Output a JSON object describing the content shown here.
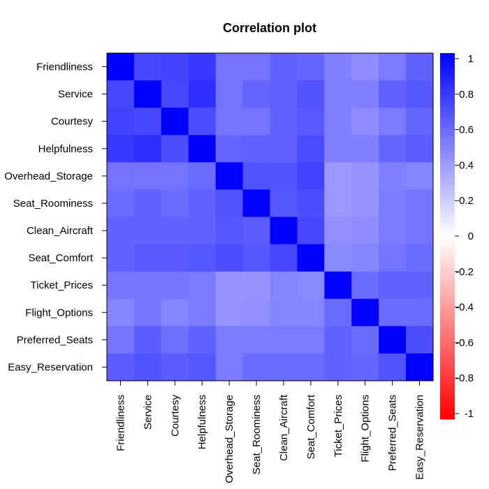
{
  "chart_data": {
    "type": "heatmap",
    "title": "Correlation plot",
    "variables": [
      "Friendliness",
      "Service",
      "Courtesy",
      "Helpfulness",
      "Overhead_Storage",
      "Seat_Roominess",
      "Clean_Aircraft",
      "Seat_Comfort",
      "Ticket_Prices",
      "Flight_Options",
      "Preferred_Seats",
      "Easy_Reservation"
    ],
    "matrix": [
      [
        1.0,
        0.72,
        0.74,
        0.78,
        0.55,
        0.55,
        0.62,
        0.6,
        0.5,
        0.45,
        0.52,
        0.62
      ],
      [
        0.72,
        1.0,
        0.72,
        0.82,
        0.55,
        0.6,
        0.62,
        0.68,
        0.5,
        0.5,
        0.62,
        0.66
      ],
      [
        0.74,
        0.72,
        1.0,
        0.7,
        0.55,
        0.55,
        0.62,
        0.65,
        0.5,
        0.45,
        0.52,
        0.6
      ],
      [
        0.78,
        0.82,
        0.7,
        1.0,
        0.6,
        0.62,
        0.62,
        0.7,
        0.5,
        0.5,
        0.6,
        0.64
      ],
      [
        0.55,
        0.55,
        0.55,
        0.58,
        1.0,
        0.68,
        0.68,
        0.74,
        0.4,
        0.42,
        0.5,
        0.48
      ],
      [
        0.58,
        0.62,
        0.58,
        0.62,
        0.68,
        1.0,
        0.66,
        0.7,
        0.4,
        0.42,
        0.52,
        0.55
      ],
      [
        0.62,
        0.62,
        0.62,
        0.62,
        0.66,
        0.64,
        1.0,
        0.72,
        0.44,
        0.45,
        0.52,
        0.55
      ],
      [
        0.62,
        0.65,
        0.65,
        0.66,
        0.7,
        0.66,
        0.72,
        1.0,
        0.46,
        0.48,
        0.55,
        0.58
      ],
      [
        0.54,
        0.54,
        0.54,
        0.52,
        0.42,
        0.42,
        0.48,
        0.46,
        1.0,
        0.58,
        0.62,
        0.62
      ],
      [
        0.48,
        0.54,
        0.48,
        0.52,
        0.42,
        0.44,
        0.48,
        0.48,
        0.58,
        1.0,
        0.58,
        0.58
      ],
      [
        0.54,
        0.64,
        0.56,
        0.62,
        0.52,
        0.52,
        0.52,
        0.52,
        0.62,
        0.58,
        1.0,
        0.7
      ],
      [
        0.64,
        0.68,
        0.64,
        0.66,
        0.52,
        0.58,
        0.58,
        0.58,
        0.62,
        0.6,
        0.68,
        1.0
      ]
    ],
    "legend_ticks": [
      "1",
      "0.8",
      "0.6",
      "0.4",
      "0.2",
      "0",
      "-0.2",
      "-0.4",
      "-0.6",
      "-0.8",
      "-1"
    ],
    "range": [
      -1,
      1
    ],
    "colors": {
      "negative": "#ff0000",
      "zero": "#ffffff",
      "positive": "#0000ff"
    },
    "legend_placement": "right"
  }
}
